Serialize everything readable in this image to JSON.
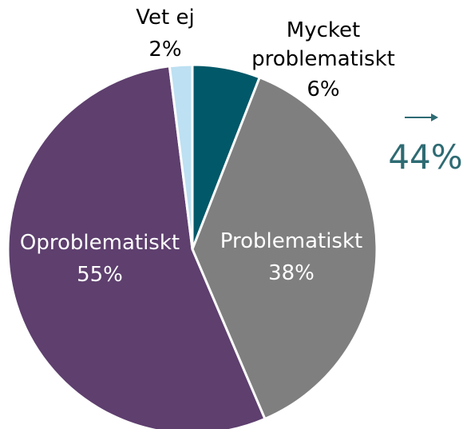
{
  "chart_data": {
    "type": "pie",
    "categories": [
      "Mycket problematiskt",
      "Problematiskt",
      "Oproblematiskt",
      "Vet ej"
    ],
    "values": [
      6,
      38,
      55,
      2
    ],
    "value_labels": [
      "6%",
      "38%",
      "55%",
      "2%"
    ],
    "colors": [
      "#005868",
      "#7f7f7f",
      "#5e3f6e",
      "#bde0f2"
    ],
    "annotation": "44%"
  }
}
